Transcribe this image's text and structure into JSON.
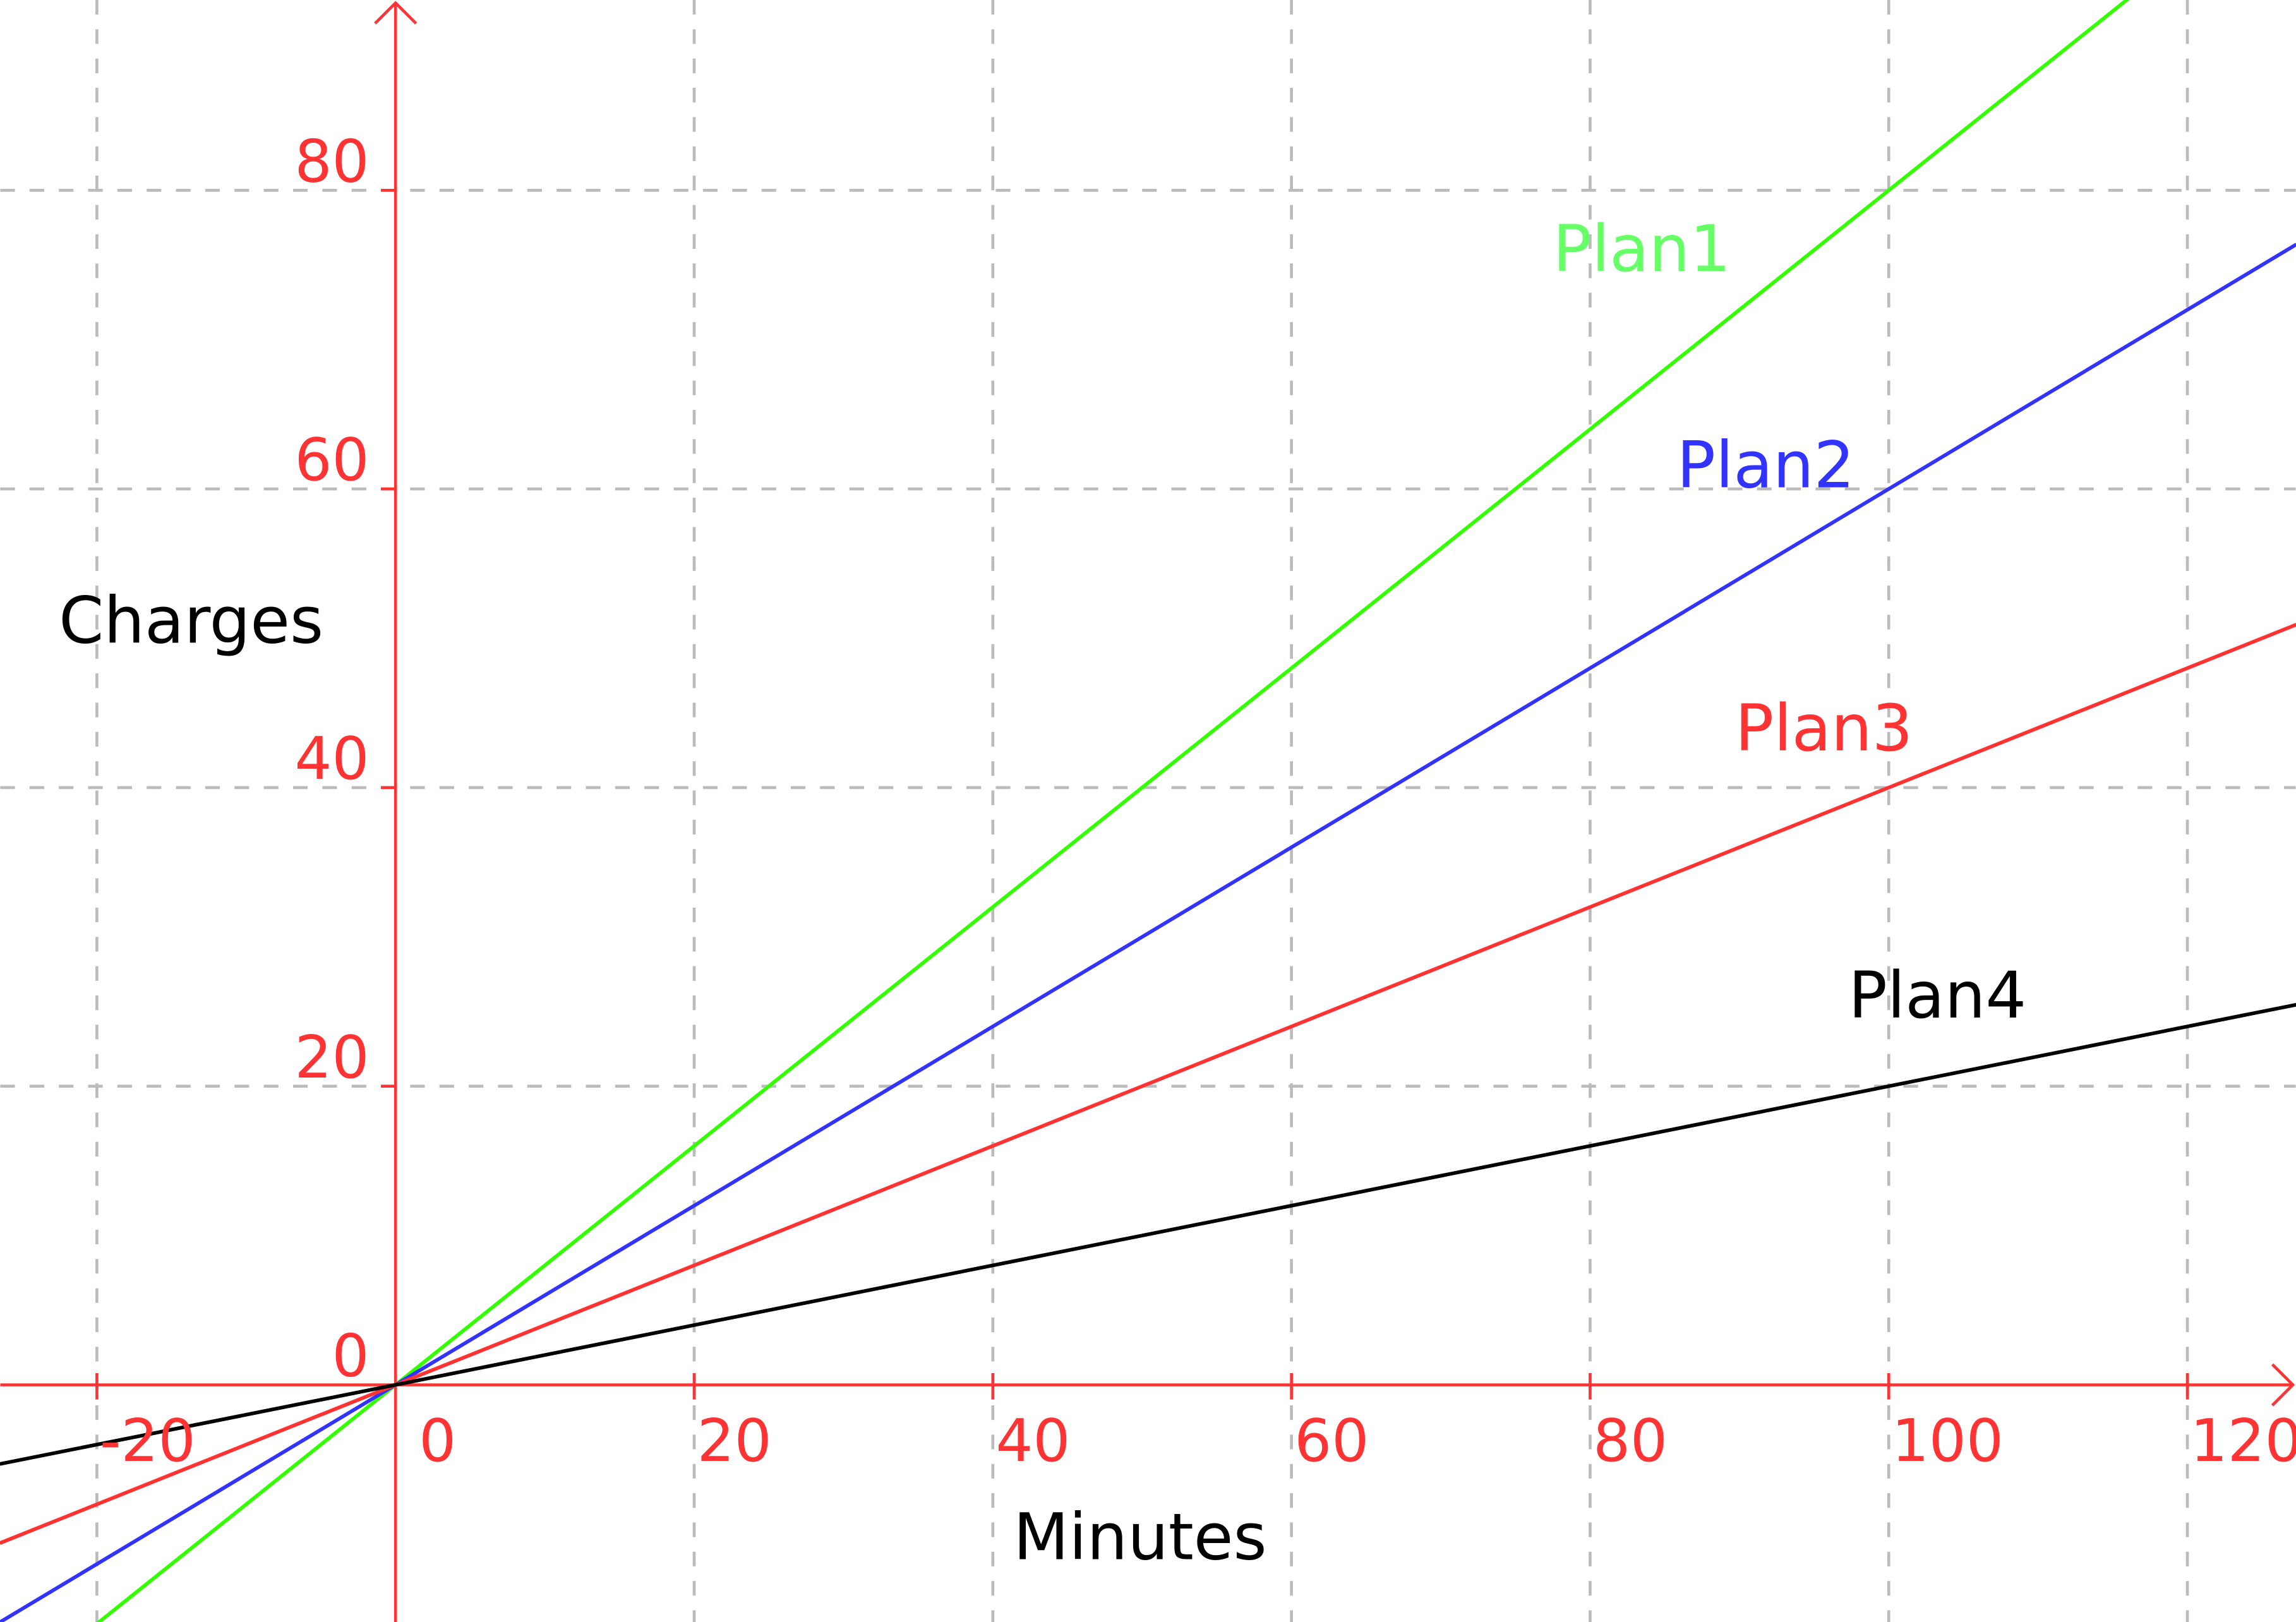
{
  "chart_data": {
    "type": "line",
    "title": "",
    "xlabel": "Minutes",
    "ylabel": "Charges",
    "xlim": [
      -26.5,
      127.3
    ],
    "ylim": [
      -15.9,
      92.7
    ],
    "x_ticks": [
      -20,
      0,
      20,
      40,
      60,
      80,
      100,
      120
    ],
    "x_tick_labels": [
      "-20",
      "0",
      "20",
      "40",
      "60",
      "80",
      "100",
      "120"
    ],
    "y_ticks": [
      0,
      20,
      40,
      60,
      80
    ],
    "y_tick_labels": [
      "0",
      "20",
      "40",
      "60",
      "80"
    ],
    "grid": true,
    "axis_color": "#ff3333",
    "grid_color": "#bbbbbb",
    "series": [
      {
        "name": "Plan1",
        "slope": 0.8,
        "intercept": 0,
        "x": [
          -26.5,
          127.3
        ],
        "y": [
          -21.2,
          101.84
        ],
        "color": "#33ff00",
        "label_color": "#66ff66"
      },
      {
        "name": "Plan2",
        "slope": 0.6,
        "intercept": 0,
        "x": [
          -26.5,
          127.3
        ],
        "y": [
          -15.9,
          76.38
        ],
        "color": "#3333ff",
        "label_color": "#3333ff"
      },
      {
        "name": "Plan3",
        "slope": 0.4,
        "intercept": 0,
        "x": [
          -26.5,
          127.3
        ],
        "y": [
          -10.6,
          50.92
        ],
        "color": "#ff3333",
        "label_color": "#ff3333"
      },
      {
        "name": "Plan4",
        "slope": 0.2,
        "intercept": 0,
        "x": [
          -26.5,
          127.3
        ],
        "y": [
          -5.3,
          25.46
        ],
        "color": "#000000",
        "label_color": "#000000"
      }
    ]
  }
}
